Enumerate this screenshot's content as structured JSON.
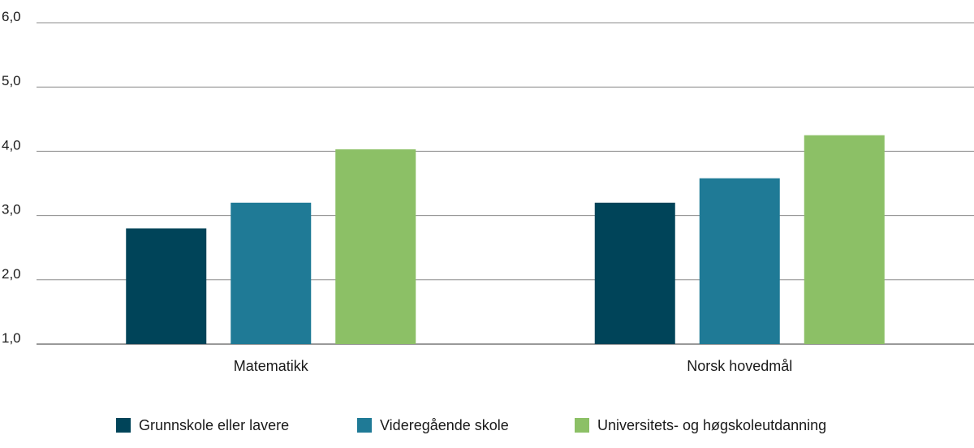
{
  "chart_data": {
    "type": "bar",
    "categories": [
      "Matematikk",
      "Norsk hovedmål"
    ],
    "series": [
      {
        "name": "Grunnskole eller lavere",
        "values": [
          2.8,
          3.2
        ],
        "color": "#004459"
      },
      {
        "name": "Videregående skole",
        "values": [
          3.2,
          3.58
        ],
        "color": "#1f7a96"
      },
      {
        "name": "Universitets- og høgskoleutdanning",
        "values": [
          4.03,
          4.25
        ],
        "color": "#8cc066"
      }
    ],
    "y_ticks": [
      "1,0",
      "2,0",
      "3,0",
      "4,0",
      "5,0",
      "6,0"
    ],
    "ylim": [
      1,
      6
    ],
    "grid": true,
    "legend_position": "bottom"
  }
}
